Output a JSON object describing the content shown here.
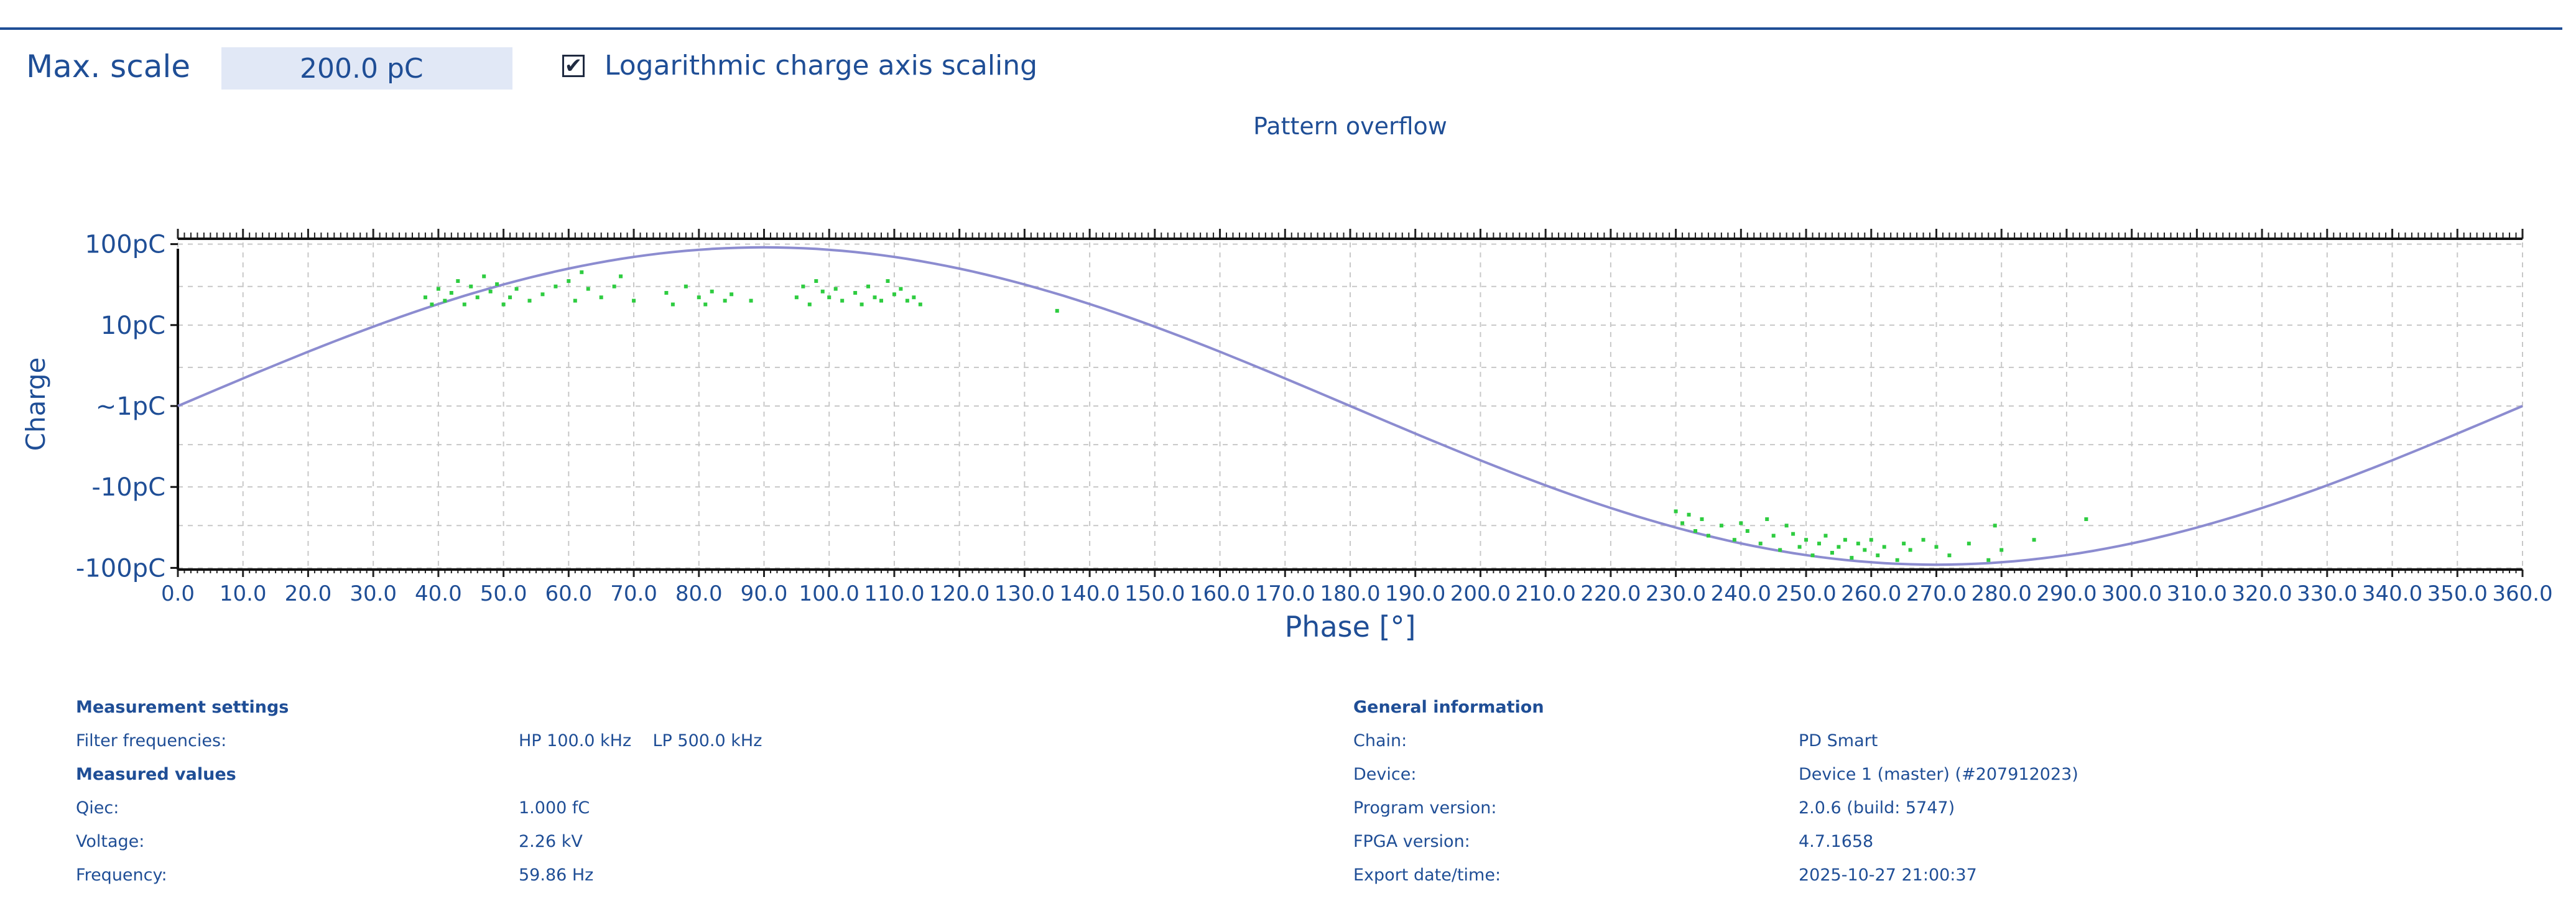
{
  "controls": {
    "max_scale_label": "Max. scale",
    "max_scale_value": "200.0 pC",
    "log_checked_mark": "✔",
    "log_label": "Logarithmic charge axis scaling"
  },
  "chart_data": {
    "type": "scatter",
    "title": "Pattern overflow",
    "xlabel": "Phase [°]",
    "ylabel": "Charge",
    "xlim": [
      0,
      360
    ],
    "x_ticks": [
      "0.0",
      "10.0",
      "20.0",
      "30.0",
      "40.0",
      "50.0",
      "60.0",
      "70.0",
      "80.0",
      "90.0",
      "100.0",
      "110.0",
      "120.0",
      "130.0",
      "140.0",
      "150.0",
      "160.0",
      "170.0",
      "180.0",
      "190.0",
      "200.0",
      "210.0",
      "220.0",
      "230.0",
      "240.0",
      "250.0",
      "260.0",
      "270.0",
      "280.0",
      "290.0",
      "300.0",
      "310.0",
      "320.0",
      "330.0",
      "340.0",
      "350.0",
      "360.0"
    ],
    "y_ticks": [
      "100pC",
      "10pC",
      "~1pC",
      "-10pC",
      "-100pC"
    ],
    "y_scale": "symmetric-log",
    "grid": true,
    "reference_curve": {
      "shape": "sine",
      "color": "#8c8cd0"
    },
    "series": [
      {
        "color": "#2ecc40",
        "points": [
          [
            38,
            22
          ],
          [
            39,
            18
          ],
          [
            40,
            28
          ],
          [
            41,
            20
          ],
          [
            42,
            25
          ],
          [
            43,
            35
          ],
          [
            44,
            18
          ],
          [
            45,
            30
          ],
          [
            46,
            22
          ],
          [
            47,
            40
          ],
          [
            48,
            26
          ],
          [
            49,
            32
          ],
          [
            50,
            18
          ],
          [
            51,
            22
          ],
          [
            52,
            28
          ],
          [
            54,
            20
          ],
          [
            56,
            24
          ],
          [
            58,
            30
          ],
          [
            60,
            35
          ],
          [
            61,
            20
          ],
          [
            62,
            45
          ],
          [
            63,
            28
          ],
          [
            65,
            22
          ],
          [
            67,
            30
          ],
          [
            68,
            40
          ],
          [
            70,
            20
          ],
          [
            75,
            25
          ],
          [
            76,
            18
          ],
          [
            78,
            30
          ],
          [
            80,
            22
          ],
          [
            81,
            18
          ],
          [
            82,
            26
          ],
          [
            84,
            20
          ],
          [
            85,
            24
          ],
          [
            88,
            20
          ],
          [
            95,
            22
          ],
          [
            96,
            30
          ],
          [
            97,
            18
          ],
          [
            98,
            35
          ],
          [
            99,
            26
          ],
          [
            100,
            22
          ],
          [
            101,
            28
          ],
          [
            102,
            20
          ],
          [
            104,
            25
          ],
          [
            105,
            18
          ],
          [
            106,
            30
          ],
          [
            107,
            22
          ],
          [
            108,
            20
          ],
          [
            109,
            35
          ],
          [
            110,
            24
          ],
          [
            111,
            28
          ],
          [
            112,
            20
          ],
          [
            113,
            22
          ],
          [
            114,
            18
          ],
          [
            135,
            15
          ],
          [
            230,
            -20
          ],
          [
            231,
            -28
          ],
          [
            232,
            -22
          ],
          [
            233,
            -35
          ],
          [
            234,
            -25
          ],
          [
            235,
            -40
          ],
          [
            237,
            -30
          ],
          [
            239,
            -45
          ],
          [
            240,
            -28
          ],
          [
            241,
            -35
          ],
          [
            243,
            -50
          ],
          [
            244,
            -25
          ],
          [
            245,
            -40
          ],
          [
            246,
            -60
          ],
          [
            247,
            -30
          ],
          [
            248,
            -38
          ],
          [
            249,
            -55
          ],
          [
            250,
            -45
          ],
          [
            251,
            -70
          ],
          [
            252,
            -50
          ],
          [
            253,
            -40
          ],
          [
            254,
            -65
          ],
          [
            255,
            -55
          ],
          [
            256,
            -45
          ],
          [
            257,
            -75
          ],
          [
            258,
            -50
          ],
          [
            259,
            -60
          ],
          [
            260,
            -45
          ],
          [
            261,
            -70
          ],
          [
            262,
            -55
          ],
          [
            264,
            -80
          ],
          [
            265,
            -50
          ],
          [
            266,
            -60
          ],
          [
            268,
            -45
          ],
          [
            270,
            -55
          ],
          [
            272,
            -70
          ],
          [
            275,
            -50
          ],
          [
            278,
            -80
          ],
          [
            279,
            -30
          ],
          [
            280,
            -60
          ],
          [
            285,
            -45
          ],
          [
            293,
            -25
          ]
        ]
      }
    ]
  },
  "measurement": {
    "title": "Measurement settings",
    "filter_label": "Filter frequencies:",
    "filter_value": "HP 100.0 kHz    LP 500.0 kHz",
    "values_title": "Measured values",
    "qiec_label": "Qiec:",
    "qiec_value": "1.000 fC",
    "voltage_label": "Voltage:",
    "voltage_value": "2.26 kV",
    "frequency_label": "Frequency:",
    "frequency_value": "59.86 Hz"
  },
  "general": {
    "title": "General information",
    "chain_label": "Chain:",
    "chain_value": "PD Smart",
    "device_label": "Device:",
    "device_value": "Device 1 (master) (#207912023)",
    "program_label": "Program version:",
    "program_value": "2.0.6 (build: 5747)",
    "fpga_label": "FPGA version:",
    "fpga_value": "4.7.1658",
    "export_label": "Export date/time:",
    "export_value": "2025-10-27 21:00:37"
  }
}
